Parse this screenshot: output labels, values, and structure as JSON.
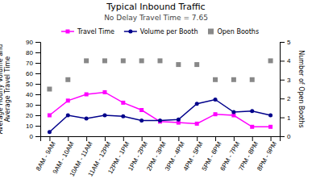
{
  "chart_data": {
    "type": "line",
    "title": "Typical Inbound Traffic",
    "subtitle": "No Delay Travel Time = 7.65",
    "ylabel": "Average Hourly Volume and\nAverage Travel Time",
    "y2label": "Number of Open Booths",
    "categories": [
      "8AM - 9AM",
      "9AM - 10AM",
      "10AM - 11AM",
      "11AM - 12PM",
      "12PM - 1PM",
      "1PM - 2PM",
      "2PM - 3PM",
      "3PM - 4PM",
      "4PM - 5PM",
      "5PM - 6PM",
      "6PM - 7PM",
      "7PM - 8PM",
      "8PM - 9PM"
    ],
    "series": [
      {
        "name": "Travel Time",
        "type": "line",
        "marker": "square",
        "color": "#FF00FF",
        "values": [
          20,
          34,
          40,
          42,
          32,
          25,
          14,
          13,
          12,
          21,
          20,
          9,
          9
        ]
      },
      {
        "name": "Volume per Booth",
        "type": "line",
        "marker": "circle",
        "color": "#00008B",
        "values": [
          4,
          20,
          17,
          20,
          19,
          15,
          15,
          16,
          31,
          35,
          23,
          24,
          20
        ]
      },
      {
        "name": "Open Booths",
        "type": "scatter",
        "marker": "square",
        "color": "#888888",
        "axis": "y2",
        "values": [
          2.5,
          3,
          4,
          4,
          4,
          4,
          4,
          3.8,
          3.8,
          3,
          3,
          3,
          4
        ]
      }
    ],
    "ylim": [
      0,
      90
    ],
    "yticks": [
      0,
      10,
      20,
      30,
      40,
      50,
      60,
      70,
      80,
      90
    ],
    "y2lim": [
      0,
      5
    ],
    "y2ticks": [
      0,
      1,
      2,
      3,
      4,
      5
    ],
    "legend": "top"
  }
}
